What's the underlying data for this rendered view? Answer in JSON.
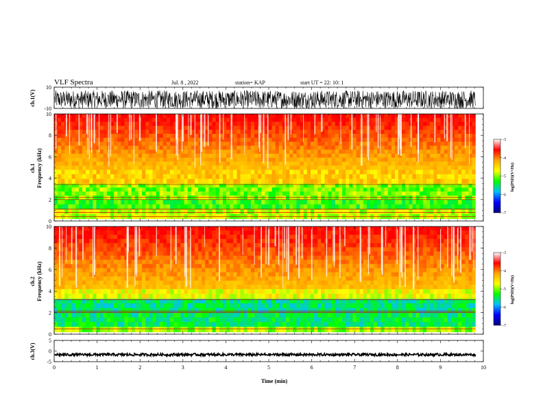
{
  "header": {
    "title": "VLF Spectra",
    "date": "Jul. 8 , 2022",
    "station": "station= KAP",
    "start_ut": "start UT = 22: 10: 1"
  },
  "chart_data": [
    {
      "type": "line",
      "name": "ch1-waveform",
      "ylabel": "ch.1(V)",
      "ylim": [
        -10,
        10
      ],
      "yticks": [
        "10",
        "-10"
      ],
      "xlim": [
        0,
        10
      ]
    },
    {
      "type": "heatmap",
      "name": "ch1-spectrogram",
      "ylabel_channel": "ch.1",
      "ylabel": "Frequency (kHz)",
      "ylim": [
        0,
        10
      ],
      "yticks": [
        "0",
        "2",
        "4",
        "6",
        "8",
        "10"
      ],
      "xlim": [
        0,
        10
      ],
      "data_end_min": 9.82,
      "bands_khz": [
        {
          "f": [
            0.2,
            1.1
          ],
          "level": -4.5
        },
        {
          "f": [
            1.1,
            2.0
          ],
          "level": -4.9
        },
        {
          "f": [
            2.0,
            3.5
          ],
          "level": -4.7
        },
        {
          "f": [
            3.5,
            4.8
          ],
          "level": -4.0
        },
        {
          "f": [
            4.8,
            10.0
          ],
          "level": -3.2
        }
      ],
      "lines_khz": [
        0.4,
        0.8,
        1.1,
        2.0,
        2.2,
        3.4
      ],
      "colorbar": {
        "label": "log(PSD)(V²/Hz)",
        "range": [
          -7,
          -3
        ],
        "ticks": [
          "-3",
          "-4",
          "-5",
          "-6",
          "-7"
        ],
        "colors": [
          "#ffffff",
          "#ff0000",
          "#ffa500",
          "#ffff00",
          "#00ff00",
          "#00bfff",
          "#0000ff",
          "#000080"
        ]
      }
    },
    {
      "type": "heatmap",
      "name": "ch2-spectrogram",
      "ylabel_channel": "ch.2",
      "ylabel": "Frequency (kHz)",
      "ylim": [
        0,
        10
      ],
      "yticks": [
        "0",
        "2",
        "4",
        "6",
        "8",
        "10"
      ],
      "xlim": [
        0,
        10
      ],
      "data_end_min": 9.82,
      "bands_khz": [
        {
          "f": [
            0.2,
            0.7
          ],
          "level": -4.6
        },
        {
          "f": [
            0.7,
            2.0
          ],
          "level": -5.2
        },
        {
          "f": [
            2.0,
            3.3
          ],
          "level": -5.3
        },
        {
          "f": [
            3.3,
            4.2
          ],
          "level": -4.3
        },
        {
          "f": [
            4.2,
            10.0
          ],
          "level": -3.3
        }
      ],
      "lines_khz": [
        0.5,
        2.0,
        2.15,
        3.2
      ],
      "colorbar": {
        "label": "log(PSD)(V²/Hz)",
        "range": [
          -7,
          -3
        ],
        "ticks": [
          "-3",
          "-4",
          "-5",
          "-6",
          "-7"
        ],
        "colors": [
          "#ffffff",
          "#ff0000",
          "#ffa500",
          "#ffff00",
          "#00ff00",
          "#00bfff",
          "#0000ff",
          "#000080"
        ]
      }
    },
    {
      "type": "line",
      "name": "ch3-waveform",
      "ylabel": "ch.3(V)",
      "ylim": [
        -5,
        5
      ],
      "yticks": [
        "5",
        "0",
        "-5"
      ],
      "xlim": [
        0,
        10
      ],
      "xlabel": "Time (min)",
      "xticks": [
        "0",
        "1",
        "2",
        "3",
        "4",
        "5",
        "6",
        "7",
        "8",
        "9",
        "10"
      ]
    }
  ]
}
